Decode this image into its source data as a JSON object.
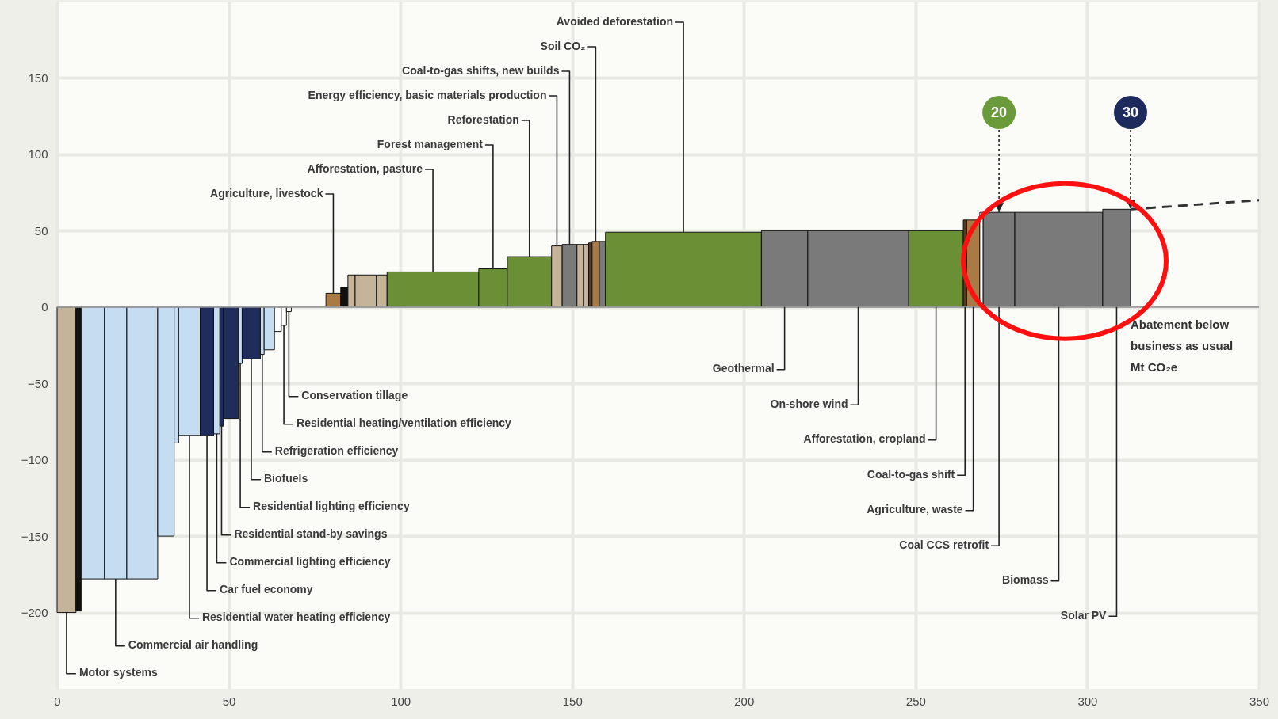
{
  "chart_data": {
    "type": "bar",
    "xlabel": "Abatement below business as usual Mt CO₂e",
    "x": [
      2.75,
      6.25,
      10.4,
      17.05,
      24.8,
      31.7,
      34.75,
      38.55,
      43.65,
      46.5,
      47.9,
      50.6,
      53.35,
      56.55,
      59.75,
      61.8,
      64.3,
      66.05,
      67.5,
      73.25,
      80.45,
      83.65,
      85.75,
      89.9,
      94.55,
      109.45,
      126.95,
      137.55,
      145.55,
      149.25,
      152.35,
      154.05,
      155.3,
      156.85,
      158.8,
      182.4,
      211.85,
      233.3,
      255.95,
      264.4,
      266.8,
      269.2,
      274.3,
      291.7,
      308.55
    ],
    "series": [
      {
        "values": [
          -200,
          -199,
          -178,
          -178,
          -178,
          -150,
          -89,
          -84,
          -84,
          -83,
          -78,
          -73,
          -37,
          -34,
          -31,
          -28,
          -16,
          -12,
          -3,
          null,
          9,
          13,
          21,
          21,
          21,
          23,
          25,
          33,
          40,
          41,
          41,
          41,
          42,
          43,
          43,
          49,
          50,
          50,
          50,
          57,
          57,
          62,
          62,
          62,
          64
        ],
        "colors": [
          "#c4b49a",
          "#111111",
          "#c6dcf0",
          "#c6dcf0",
          "#c6dcf0",
          "#c6dcf0",
          "#c6dcf0",
          "#c6dcf0",
          "#1f2d5a",
          "#c6dcf0",
          "#1f2d5a",
          "#1f2d5a",
          "#c6dcf0",
          "#1f2d5a",
          "#c6dcf0",
          "#c6dcf0",
          "#ffffff",
          "#ffffff",
          "#ffffff",
          null,
          "#a87a45",
          "#111111",
          "#c4b49a",
          "#c4b49a",
          "#c4b49a",
          "#6a8f35",
          "#6a8f35",
          "#6a8f35",
          "#c4b49a",
          "#7a7a7a",
          "#c4b49a",
          "#c4b49a",
          "#5a3a1a",
          "#a87a45",
          "#7a7a7a",
          "#6a8f35",
          "#7a7a7a",
          "#7a7a7a",
          "#6a8f35",
          "#5a3a1a",
          "#a87a45",
          "#ffffff",
          "#7a7a7a",
          "#7a7a7a",
          "#7a7a7a"
        ]
      },
      {
        "type": "line",
        "x": [
          312.6,
          350
        ],
        "values": [
          64,
          70
        ],
        "color": "#333333",
        "line_style": "dashed"
      }
    ],
    "xlim": [
      0,
      350
    ],
    "ylim": [
      -250,
      200
    ],
    "xticks": [
      0,
      50,
      100,
      150,
      200,
      250,
      300,
      350
    ],
    "yticks": [
      -200,
      -150,
      -100,
      -50,
      0,
      50,
      100,
      150
    ],
    "grid": true,
    "ref_lines": [
      {
        "axis": "y",
        "value": 0,
        "color": "#9a9a9a"
      }
    ],
    "annotations": [
      {
        "text": "20",
        "x": 274.3,
        "y": 62
      },
      {
        "text": "30",
        "x": 312.6,
        "y": 64
      },
      {
        "text": "Avoided deforestation",
        "x": 182.4,
        "y": 49
      },
      {
        "text": "Soil CO₂",
        "x": 156.85,
        "y": 43
      },
      {
        "text": "Coal-to-gas shifts, new builds",
        "x": 149.25,
        "y": 41
      },
      {
        "text": "Energy efficiency, basic materials production",
        "x": 145.55,
        "y": 40
      },
      {
        "text": "Reforestation",
        "x": 137.55,
        "y": 33
      },
      {
        "text": "Forest management",
        "x": 126.95,
        "y": 25
      },
      {
        "text": "Afforestation, pasture",
        "x": 109.45,
        "y": 23
      },
      {
        "text": "Agriculture, livestock",
        "x": 80.45,
        "y": 9
      },
      {
        "text": "Conservation tillage",
        "x": 67.5,
        "y": -3
      },
      {
        "text": "Residential heating/ventilation efficiency",
        "x": 66.05,
        "y": -12
      },
      {
        "text": "Refrigeration efficiency",
        "x": 59.75,
        "y": -31
      },
      {
        "text": "Biofuels",
        "x": 56.55,
        "y": -34
      },
      {
        "text": "Residential lighting efficiency",
        "x": 53.35,
        "y": -37
      },
      {
        "text": "Residential stand-by savings",
        "x": 47.9,
        "y": -78
      },
      {
        "text": "Commercial lighting efficiency",
        "x": 46.5,
        "y": -83
      },
      {
        "text": "Car fuel economy",
        "x": 43.65,
        "y": -84
      },
      {
        "text": "Residential water heating efficiency",
        "x": 38.55,
        "y": -84
      },
      {
        "text": "Commercial air handling",
        "x": 17.05,
        "y": -178
      },
      {
        "text": "Motor systems",
        "x": 2.75,
        "y": -200
      },
      {
        "text": "Geothermal",
        "x": 211.85,
        "y": 0
      },
      {
        "text": "On-shore wind",
        "x": 233.3,
        "y": 0
      },
      {
        "text": "Afforestation, cropland",
        "x": 255.95,
        "y": 0
      },
      {
        "text": "Coal-to-gas shift",
        "x": 264.4,
        "y": 0
      },
      {
        "text": "Agriculture, waste",
        "x": 266.8,
        "y": 0
      },
      {
        "text": "Coal CCS retrofit",
        "x": 274.3,
        "y": 0
      },
      {
        "text": "Biomass",
        "x": 291.7,
        "y": 0
      },
      {
        "text": "Solar PV",
        "x": 308.55,
        "y": 0
      }
    ]
  }
}
